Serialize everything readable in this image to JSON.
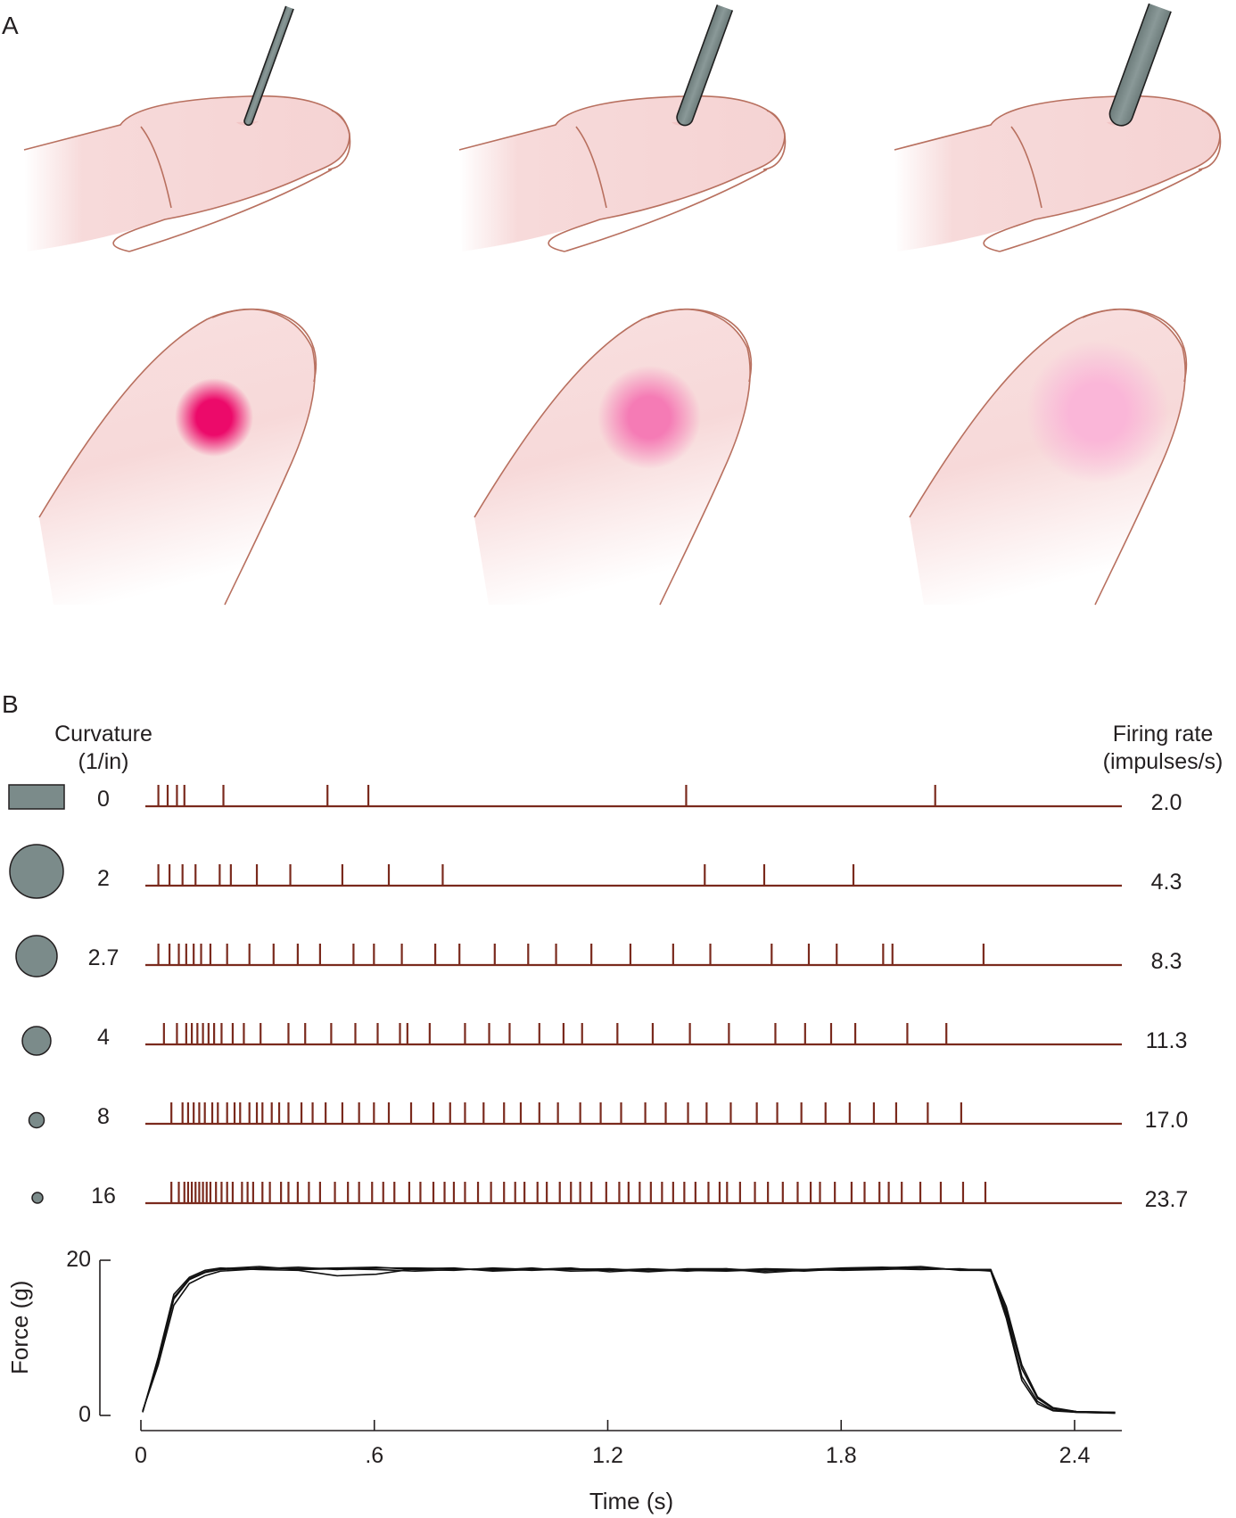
{
  "panel_a": {
    "letter": "A",
    "probes": [
      "sharp-probe",
      "medium-probe",
      "blunt-probe"
    ],
    "pressure_spots": [
      {
        "color": "#ec0a6a",
        "intensity": 1.0
      },
      {
        "color": "#f57bb5",
        "intensity": 0.8
      },
      {
        "color": "#fab6d8",
        "intensity": 0.65
      }
    ],
    "skin_color": "#f7dada",
    "outline_color": "#b8705f",
    "probe_color": "#7b8b8a"
  },
  "panel_b": {
    "letter": "B",
    "curvature_header": [
      "Curvature",
      "(1/in)"
    ],
    "rate_header": [
      "Firing rate",
      "(impulses/s)"
    ],
    "spike_color": "#7a2a1d",
    "trials": [
      {
        "curvature": "0",
        "rate": "2.0",
        "probe_shape": "flat-rectangle",
        "spikes": [
          0.035,
          0.06,
          0.085,
          0.105,
          0.21,
          0.49,
          0.6,
          1.455,
          2.125
        ]
      },
      {
        "curvature": "2",
        "rate": "4.3",
        "probe_shape": "large-circle",
        "spikes": [
          0.035,
          0.065,
          0.1,
          0.135,
          0.2,
          0.23,
          0.3,
          0.39,
          0.53,
          0.655,
          0.8,
          1.505,
          1.665,
          1.905
        ]
      },
      {
        "curvature": "2.7",
        "rate": "8.3",
        "probe_shape": "medium-circle",
        "spikes": [
          0.035,
          0.065,
          0.09,
          0.11,
          0.13,
          0.15,
          0.175,
          0.22,
          0.28,
          0.345,
          0.41,
          0.47,
          0.56,
          0.615,
          0.69,
          0.78,
          0.845,
          0.94,
          1.03,
          1.105,
          1.2,
          1.305,
          1.42,
          1.52,
          1.685,
          1.785,
          1.86,
          1.985,
          2.01,
          2.255
        ]
      },
      {
        "curvature": "4",
        "rate": "11.3",
        "probe_shape": "small-circle",
        "spikes": [
          0.05,
          0.085,
          0.11,
          0.125,
          0.14,
          0.155,
          0.17,
          0.185,
          0.205,
          0.235,
          0.265,
          0.31,
          0.385,
          0.43,
          0.5,
          0.565,
          0.625,
          0.685,
          0.705,
          0.765,
          0.86,
          0.925,
          0.98,
          1.06,
          1.125,
          1.175,
          1.27,
          1.365,
          1.465,
          1.57,
          1.695,
          1.775,
          1.845,
          1.91,
          2.05,
          2.155
        ]
      },
      {
        "curvature": "8",
        "rate": "17.0",
        "probe_shape": "tiny-circle",
        "spikes": [
          0.07,
          0.1,
          0.115,
          0.13,
          0.145,
          0.16,
          0.18,
          0.195,
          0.22,
          0.24,
          0.255,
          0.28,
          0.3,
          0.315,
          0.34,
          0.36,
          0.385,
          0.42,
          0.45,
          0.485,
          0.53,
          0.575,
          0.615,
          0.655,
          0.715,
          0.775,
          0.82,
          0.86,
          0.91,
          0.965,
          1.01,
          1.06,
          1.11,
          1.17,
          1.225,
          1.28,
          1.345,
          1.4,
          1.46,
          1.51,
          1.575,
          1.645,
          1.7,
          1.765,
          1.83,
          1.895,
          1.96,
          2.02,
          2.105,
          2.195
        ]
      },
      {
        "curvature": "16",
        "rate": "23.7",
        "probe_shape": "dot-circle",
        "spikes": [
          0.07,
          0.09,
          0.105,
          0.115,
          0.125,
          0.135,
          0.145,
          0.155,
          0.165,
          0.175,
          0.19,
          0.205,
          0.22,
          0.235,
          0.26,
          0.275,
          0.29,
          0.315,
          0.335,
          0.365,
          0.385,
          0.41,
          0.44,
          0.47,
          0.51,
          0.545,
          0.575,
          0.61,
          0.64,
          0.67,
          0.71,
          0.74,
          0.775,
          0.805,
          0.83,
          0.86,
          0.895,
          0.93,
          0.965,
          0.995,
          1.02,
          1.055,
          1.08,
          1.115,
          1.145,
          1.17,
          1.2,
          1.24,
          1.275,
          1.3,
          1.33,
          1.36,
          1.39,
          1.42,
          1.45,
          1.48,
          1.515,
          1.545,
          1.565,
          1.6,
          1.64,
          1.675,
          1.715,
          1.755,
          1.79,
          1.815,
          1.855,
          1.9,
          1.935,
          1.975,
          2.0,
          2.035,
          2.085,
          2.14,
          2.2,
          2.26
        ]
      }
    ]
  },
  "chart_data": {
    "type": "line",
    "xlabel": "Time (s)",
    "ylabel": "Force (g)",
    "xlim": [
      0,
      2.5
    ],
    "ylim": [
      0,
      20
    ],
    "x_ticks": [
      0,
      0.6,
      1.2,
      1.8,
      2.4
    ],
    "x_tick_labels": [
      "0",
      ".6",
      "1.2",
      "1.8",
      "2.4"
    ],
    "y_ticks": [
      0,
      20
    ],
    "y_tick_labels": [
      "0",
      "20"
    ],
    "line_color": "#111111",
    "series": [
      {
        "x": [
          0,
          0.04,
          0.08,
          0.12,
          0.16,
          0.2,
          0.3,
          0.4,
          0.5,
          0.6,
          0.7,
          0.8,
          0.9,
          1.0,
          1.1,
          1.2,
          1.3,
          1.4,
          1.5,
          1.6,
          1.7,
          1.8,
          1.9,
          2.0,
          2.1,
          2.18,
          2.22,
          2.26,
          2.3,
          2.34,
          2.4,
          2.5
        ],
        "y": [
          0.5,
          7,
          15,
          17.5,
          18.4,
          18.8,
          19,
          18.9,
          19,
          19.1,
          18.8,
          18.7,
          19,
          18.8,
          18.8,
          18.9,
          18.6,
          18.9,
          18.9,
          18.6,
          18.8,
          19,
          19.1,
          19,
          18.8,
          18.8,
          13,
          5,
          1.8,
          0.7,
          0.4,
          0.3
        ]
      },
      {
        "x": [
          0,
          0.04,
          0.08,
          0.12,
          0.16,
          0.2,
          0.3,
          0.4,
          0.5,
          0.6,
          0.7,
          0.8,
          0.9,
          1.0,
          1.1,
          1.2,
          1.3,
          1.4,
          1.5,
          1.6,
          1.7,
          1.8,
          1.9,
          2.0,
          2.1,
          2.18,
          2.22,
          2.26,
          2.3,
          2.34,
          2.4,
          2.5
        ],
        "y": [
          0.6,
          6.5,
          14.2,
          17,
          18,
          18.6,
          18.9,
          19.1,
          18.8,
          19,
          19,
          18.9,
          18.7,
          19,
          18.6,
          18.7,
          18.9,
          18.7,
          18.6,
          18.8,
          18.6,
          18.9,
          19,
          19.2,
          18.7,
          18.7,
          13.5,
          6,
          2.2,
          0.9,
          0.5,
          0.4
        ]
      },
      {
        "x": [
          0,
          0.04,
          0.08,
          0.12,
          0.16,
          0.2,
          0.3,
          0.4,
          0.5,
          0.6,
          0.7,
          0.8,
          0.9,
          1.0,
          1.1,
          1.2,
          1.3,
          1.4,
          1.5,
          1.6,
          1.7,
          1.8,
          1.9,
          2.0,
          2.1,
          2.18,
          2.22,
          2.26,
          2.3,
          2.34,
          2.4,
          2.5
        ],
        "y": [
          0.4,
          7.5,
          15.6,
          17.8,
          18.7,
          19,
          18.8,
          18.7,
          18,
          18.2,
          18.9,
          19,
          18.6,
          18.8,
          19,
          18.5,
          18.8,
          18.6,
          18.9,
          18.4,
          18.7,
          18.8,
          18.9,
          18.8,
          18.9,
          18.6,
          12.5,
          4.5,
          1.5,
          0.6,
          0.4,
          0.3
        ]
      },
      {
        "x": [
          0,
          0.04,
          0.08,
          0.12,
          0.16,
          0.2,
          0.3,
          0.4,
          0.5,
          0.6,
          0.7,
          0.8,
          0.9,
          1.0,
          1.1,
          1.2,
          1.3,
          1.4,
          1.5,
          1.6,
          1.7,
          1.8,
          1.9,
          2.0,
          2.1,
          2.18,
          2.22,
          2.26,
          2.3,
          2.34,
          2.4,
          2.5
        ],
        "y": [
          0.5,
          7.2,
          15.2,
          17.6,
          18.5,
          18.9,
          19.2,
          18.8,
          18.9,
          18.8,
          18.6,
          18.8,
          18.9,
          18.7,
          18.9,
          18.8,
          18.5,
          18.8,
          18.7,
          18.9,
          18.8,
          18.7,
          18.8,
          19,
          18.8,
          18.8,
          14,
          6.5,
          2.4,
          1,
          0.5,
          0.4
        ]
      }
    ]
  }
}
